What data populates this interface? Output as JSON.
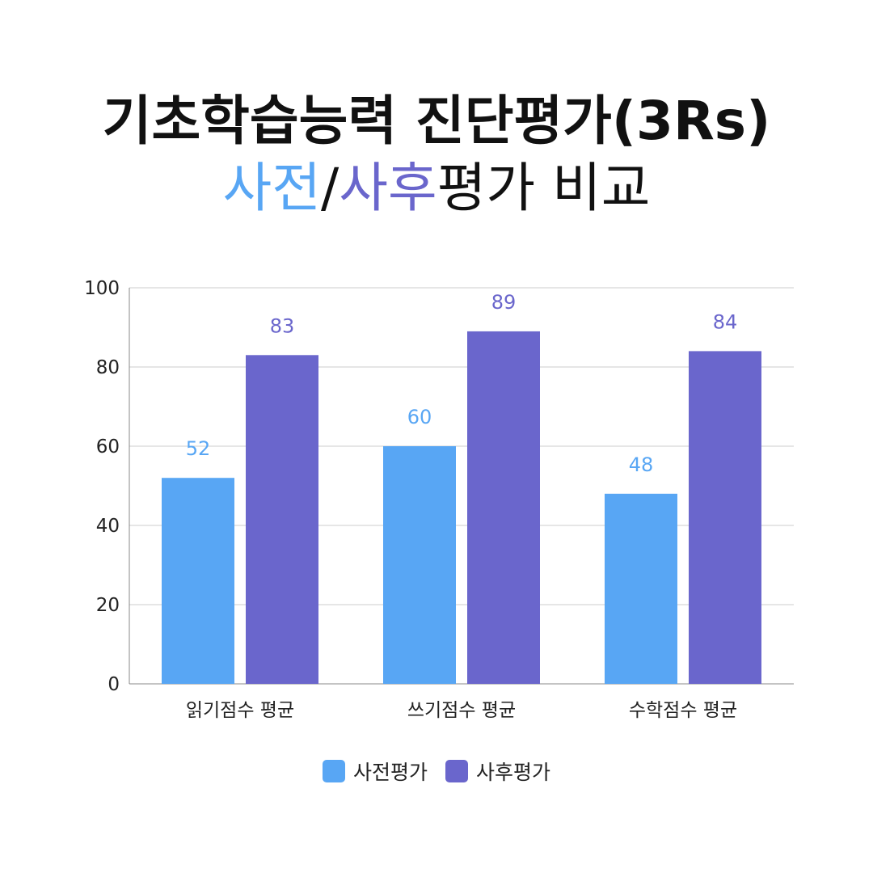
{
  "title": {
    "line1": "기초학습능력 진단평가(3Rs)",
    "line2_pre": "사전",
    "line2_sep": "/",
    "line2_post": "사후",
    "line2_rest": "평가 비교"
  },
  "colors": {
    "pre": "#58a6f4",
    "post": "#6a66cc",
    "grid": "#cccccc",
    "axis": "#888888",
    "text": "#222222"
  },
  "chart_data": {
    "type": "bar",
    "title": "",
    "xlabel": "",
    "ylabel": "",
    "categories": [
      "읽기점수 평균",
      "쓰기점수 평균",
      "수학점수 평균"
    ],
    "series": [
      {
        "name": "사전평가",
        "values": [
          52,
          60,
          48
        ]
      },
      {
        "name": "사후평가",
        "values": [
          83,
          89,
          84
        ]
      }
    ],
    "ylim": [
      0,
      100
    ],
    "yticks": [
      0,
      20,
      40,
      60,
      80,
      100
    ],
    "grid": true,
    "data_labels": true,
    "legend": "bottom-center"
  }
}
